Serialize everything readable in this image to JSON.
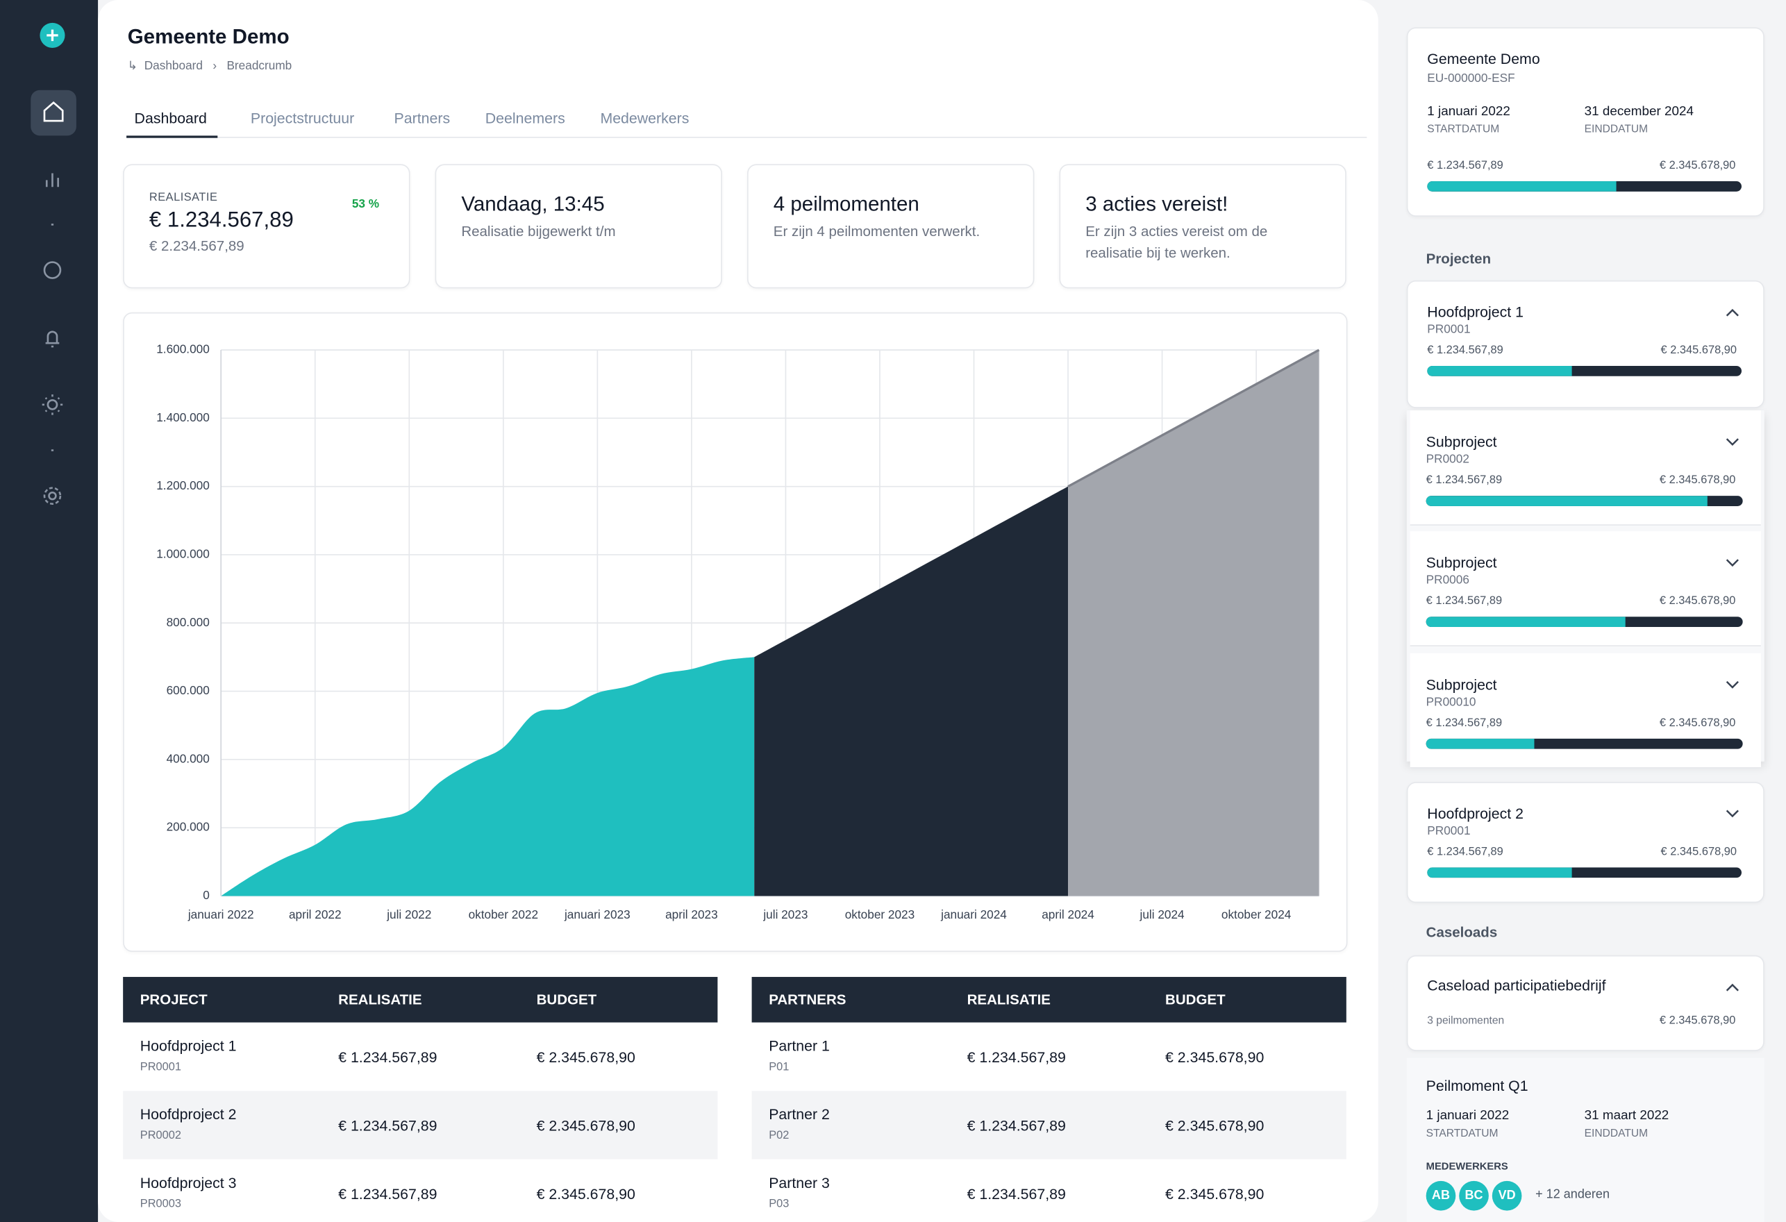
{
  "header": {
    "title": "Gemeente Demo",
    "breadcrumb": [
      "Dashboard",
      "Breadcrumb"
    ]
  },
  "tabs": [
    "Dashboard",
    "Projectstructuur",
    "Partners",
    "Deelnemers",
    "Medewerkers"
  ],
  "stats": [
    {
      "label": "REALISATIE",
      "badge": "53 %",
      "value": "€ 1.234.567,89",
      "sub": "€ 2.234.567,89"
    },
    {
      "value": "Vandaag, 13:45",
      "sub": "Realisatie bijgewerkt t/m"
    },
    {
      "value": "4 peilmomenten",
      "sub": "Er zijn 4 peilmomenten verwerkt."
    },
    {
      "value": "3 acties vereist!",
      "sub": "Er zijn 3 acties vereist om de realisatie bij te werken."
    }
  ],
  "chart_data": {
    "type": "area",
    "xlim": [
      "2022-01",
      "2024-12"
    ],
    "xticks": [
      {
        "value": "2022-01",
        "label": "januari 2022"
      },
      {
        "value": "2022-04",
        "label": "april 2022"
      },
      {
        "value": "2022-07",
        "label": "juli 2022"
      },
      {
        "value": "2022-10",
        "label": "oktober 2022"
      },
      {
        "value": "2023-01",
        "label": "januari 2023"
      },
      {
        "value": "2023-04",
        "label": "april 2023"
      },
      {
        "value": "2023-07",
        "label": "juli 2023"
      },
      {
        "value": "2023-10",
        "label": "oktober 2023"
      },
      {
        "value": "2024-01",
        "label": "januari 2024"
      },
      {
        "value": "2024-04",
        "label": "april 2024"
      },
      {
        "value": "2024-07",
        "label": "juli 2024"
      },
      {
        "value": "2024-10",
        "label": "oktober 2024"
      }
    ],
    "ylim": [
      0,
      1600000
    ],
    "yticks": [
      0,
      {
        "value": 200000,
        "label": "200.000"
      },
      {
        "value": 400000,
        "label": "400.000"
      },
      {
        "value": 600000,
        "label": "600.000"
      },
      {
        "value": 800000,
        "label": "800.000"
      },
      {
        "value": 1000000,
        "label": "1.000.000"
      },
      {
        "value": 1200000,
        "label": "1.200.000"
      },
      {
        "value": 1400000,
        "label": "1.400.000"
      },
      {
        "value": 1600000,
        "label": "1.600.000"
      }
    ],
    "grid": true,
    "series": [
      {
        "color": "#1fbfbf",
        "x": [
          "2022-01",
          "2022-02",
          "2022-03",
          "2022-04",
          "2022-05",
          "2022-06",
          "2022-07",
          "2022-08",
          "2022-09",
          "2022-10",
          "2022-11",
          "2022-12",
          "2023-01",
          "2023-02",
          "2023-03",
          "2023-04",
          "2023-05",
          "2023-06"
        ],
        "values": [
          0,
          60000,
          110000,
          150000,
          210000,
          225000,
          250000,
          335000,
          390000,
          435000,
          535000,
          550000,
          595000,
          615000,
          650000,
          665000,
          690000,
          700000
        ]
      },
      {
        "color": "#1f2937",
        "x": [
          "2023-06",
          "2024-04"
        ],
        "values": [
          700000,
          1200000
        ]
      },
      {
        "color": "#a3a6ad",
        "x": [
          "2024-04",
          "2024-12"
        ],
        "values": [
          1200000,
          1600000
        ]
      }
    ]
  },
  "tables": [
    {
      "columns": [
        "PROJECT",
        "REALISATIE",
        "BUDGET"
      ],
      "rows": [
        [
          "Hoofdproject 1",
          "PR0001",
          "€ 1.234.567,89",
          "€ 2.345.678,90"
        ],
        [
          "Hoofdproject 2",
          "PR0002",
          "€ 1.234.567,89",
          "€ 2.345.678,90"
        ],
        [
          "Hoofdproject 3",
          "PR0003",
          "€ 1.234.567,89",
          "€ 2.345.678,90"
        ]
      ]
    },
    {
      "columns": [
        "PARTNERS",
        "REALISATIE",
        "BUDGET"
      ],
      "rows": [
        [
          "Partner 1",
          "P01",
          "€ 1.234.567,89",
          "€ 2.345.678,90"
        ],
        [
          "Partner 2",
          "P02",
          "€ 1.234.567,89",
          "€ 2.345.678,90"
        ],
        [
          "Partner 3",
          "P03",
          "€ 1.234.567,89",
          "€ 2.345.678,90"
        ]
      ]
    }
  ],
  "side": {
    "org": {
      "title": "Gemeente Demo",
      "code": "EU-000000-ESF",
      "start": "1 januari 2022",
      "start_label": "STARTDATUM",
      "end": "31 december 2024",
      "end_label": "EINDDATUM",
      "realised": "€ 1.234.567,89",
      "budget": "€ 2.345.678,90",
      "progress": 60
    },
    "projects_heading": "Projecten",
    "projects": [
      {
        "name": "Hoofdproject 1",
        "code": "PR0001",
        "realised": "€ 1.234.567,89",
        "budget": "€ 2.345.678,90",
        "progress": 46
      },
      {
        "name": "Subproject",
        "code": "PR0002",
        "realised": "€ 1.234.567,89",
        "budget": "€ 2.345.678,90",
        "progress": 89
      },
      {
        "name": "Subproject",
        "code": "PR0006",
        "realised": "€ 1.234.567,89",
        "budget": "€ 2.345.678,90",
        "progress": 63
      },
      {
        "name": "Subproject",
        "code": "PR00010",
        "realised": "€ 1.234.567,89",
        "budget": "€ 2.345.678,90",
        "progress": 34
      },
      {
        "name": "Hoofdproject 2",
        "code": "PR0001",
        "realised": "€ 1.234.567,89",
        "budget": "€ 2.345.678,90",
        "progress": 46
      }
    ],
    "caseloads_heading": "Caseloads",
    "caseload": {
      "title": "Caseload participatiebedrijf",
      "count": "3 peilmomenten",
      "budget": "€ 2.345.678,90"
    },
    "peilmoment": {
      "title": "Peilmoment Q1",
      "start": "1 januari 2022",
      "start_label": "STARTDATUM",
      "end": "31 maart 2022",
      "end_label": "EINDDATUM",
      "staff_label": "MEDEWERKERS",
      "avatars": [
        "AB",
        "BC",
        "VD"
      ],
      "others": "+ 12 anderen"
    }
  }
}
